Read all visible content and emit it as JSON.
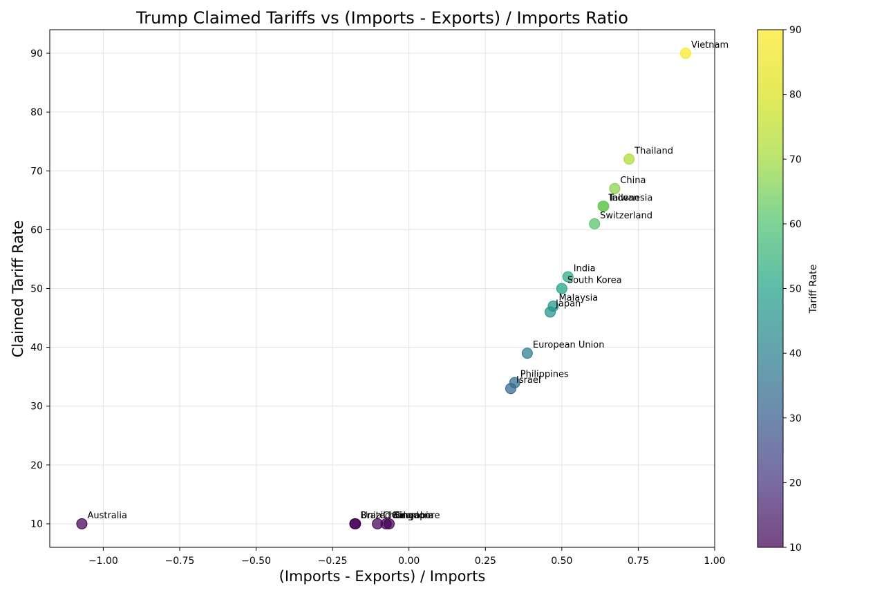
{
  "chart_data": {
    "type": "scatter",
    "title": "Trump Claimed Tariffs vs (Imports - Exports) / Imports Ratio",
    "xlabel": "(Imports - Exports) / Imports",
    "ylabel": "Claimed Tariff Rate",
    "xlim": [
      -1.175,
      1.0
    ],
    "ylim": [
      6,
      94
    ],
    "xticks": [
      -1.0,
      -0.75,
      -0.5,
      -0.25,
      0.0,
      0.25,
      0.5,
      0.75,
      1.0
    ],
    "xtick_labels": [
      "−1.00",
      "−0.75",
      "−0.50",
      "−0.25",
      "0.00",
      "0.25",
      "0.50",
      "0.75",
      "1.00"
    ],
    "yticks": [
      10,
      20,
      30,
      40,
      50,
      60,
      70,
      80,
      90
    ],
    "ytick_labels": [
      "10",
      "20",
      "30",
      "40",
      "50",
      "60",
      "70",
      "80",
      "90"
    ],
    "grid": true,
    "colorbar": {
      "label": "Tariff Rate",
      "range": [
        10,
        90
      ],
      "ticks": [
        10,
        20,
        30,
        40,
        50,
        60,
        70,
        80,
        90
      ],
      "tick_labels": [
        "10",
        "20",
        "30",
        "40",
        "50",
        "60",
        "70",
        "80",
        "90"
      ],
      "colormap": "viridis"
    },
    "points": [
      {
        "label": "Vietnam",
        "x": 0.905,
        "y": 90
      },
      {
        "label": "Thailand",
        "x": 0.72,
        "y": 72
      },
      {
        "label": "China",
        "x": 0.673,
        "y": 67
      },
      {
        "label": "Taiwan",
        "x": 0.635,
        "y": 64
      },
      {
        "label": "Indonesia",
        "x": 0.637,
        "y": 64
      },
      {
        "label": "Switzerland",
        "x": 0.607,
        "y": 61
      },
      {
        "label": "India",
        "x": 0.52,
        "y": 52
      },
      {
        "label": "South Korea",
        "x": 0.5,
        "y": 50
      },
      {
        "label": "Malaysia",
        "x": 0.472,
        "y": 47
      },
      {
        "label": "Japan",
        "x": 0.462,
        "y": 46
      },
      {
        "label": "European Union",
        "x": 0.387,
        "y": 39
      },
      {
        "label": "Philippines",
        "x": 0.346,
        "y": 34
      },
      {
        "label": "Israel",
        "x": 0.333,
        "y": 33
      },
      {
        "label": "Australia",
        "x": -1.07,
        "y": 10
      },
      {
        "label": "Brazil",
        "x": -0.177,
        "y": 10
      },
      {
        "label": "United Kingdom",
        "x": -0.175,
        "y": 10
      },
      {
        "label": "Chile",
        "x": -0.103,
        "y": 10
      },
      {
        "label": "Colombia",
        "x": -0.075,
        "y": 10
      },
      {
        "label": "Singapore",
        "x": -0.065,
        "y": 10
      }
    ]
  }
}
